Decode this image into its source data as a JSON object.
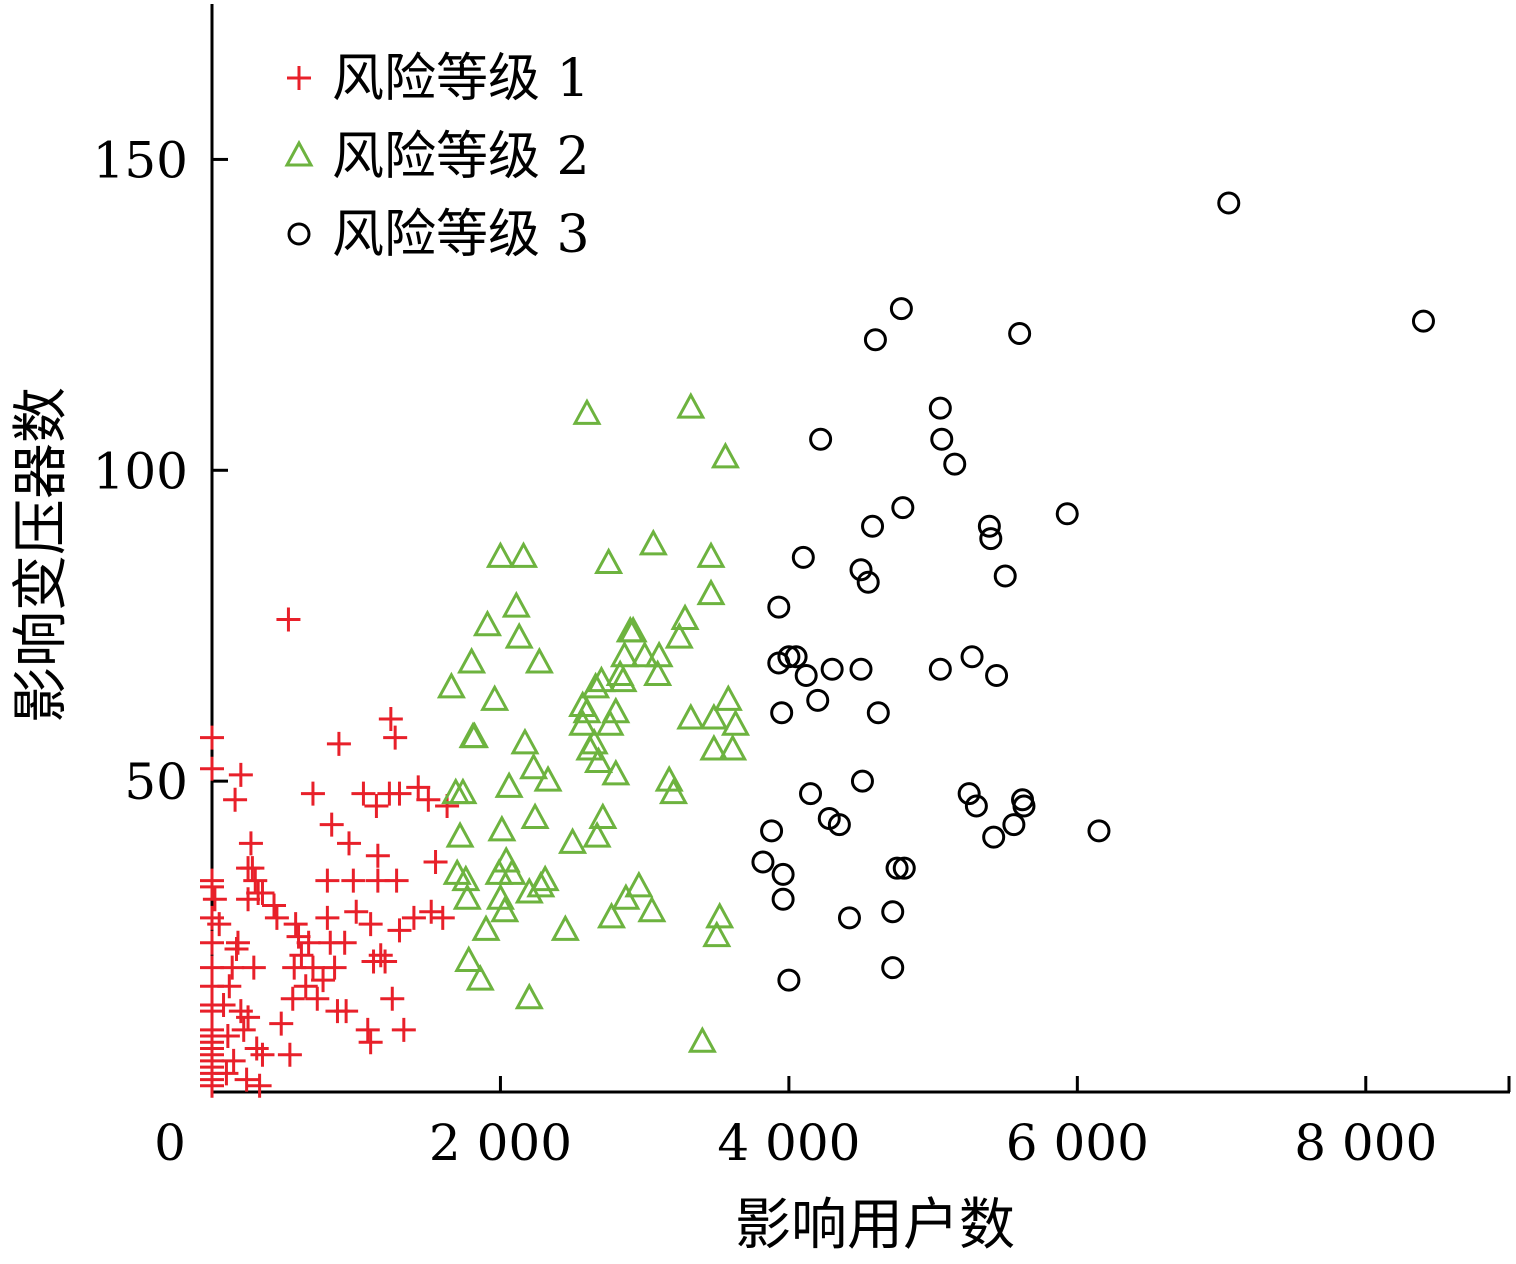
{
  "chart_data": {
    "type": "scatter",
    "title": "",
    "xlabel": "影响用户数",
    "ylabel": "影响变压器数",
    "xlim": [
      0,
      9000
    ],
    "ylim": [
      0,
      175
    ],
    "xticks": [
      0,
      2000,
      4000,
      6000,
      8000
    ],
    "xtick_labels": [
      "0",
      "2 000",
      "4 000",
      "6 000",
      "8 000"
    ],
    "yticks": [
      50,
      100,
      150
    ],
    "ytick_labels": [
      "50",
      "100",
      "150"
    ],
    "grid": false,
    "legend_position": "top-left",
    "series": [
      {
        "name": "风险等级 1",
        "marker": "plus",
        "color": "#e8202a",
        "points": [
          [
            0,
            1
          ],
          [
            0,
            2
          ],
          [
            0,
            3
          ],
          [
            0,
            4
          ],
          [
            0,
            5
          ],
          [
            0,
            6
          ],
          [
            0,
            7
          ],
          [
            0,
            8
          ],
          [
            0,
            9
          ],
          [
            0,
            10
          ],
          [
            0,
            13
          ],
          [
            0,
            14
          ],
          [
            0,
            17
          ],
          [
            0,
            20
          ],
          [
            0,
            24
          ],
          [
            0,
            28
          ],
          [
            0,
            33
          ],
          [
            0,
            34
          ],
          [
            0,
            52
          ],
          [
            0,
            57
          ],
          [
            20,
            31
          ],
          [
            50,
            27
          ],
          [
            80,
            14
          ],
          [
            100,
            3
          ],
          [
            110,
            9
          ],
          [
            120,
            17
          ],
          [
            140,
            20
          ],
          [
            150,
            5
          ],
          [
            160,
            47
          ],
          [
            170,
            23
          ],
          [
            180,
            24
          ],
          [
            200,
            51
          ],
          [
            200,
            13
          ],
          [
            220,
            10
          ],
          [
            240,
            2
          ],
          [
            250,
            31
          ],
          [
            250,
            36
          ],
          [
            250,
            12
          ],
          [
            270,
            40
          ],
          [
            280,
            36
          ],
          [
            290,
            20
          ],
          [
            300,
            34
          ],
          [
            310,
            7
          ],
          [
            320,
            32
          ],
          [
            330,
            1
          ],
          [
            350,
            32
          ],
          [
            350,
            6
          ],
          [
            430,
            30
          ],
          [
            450,
            28
          ],
          [
            480,
            11
          ],
          [
            530,
            76
          ],
          [
            540,
            6
          ],
          [
            560,
            15
          ],
          [
            570,
            20
          ],
          [
            580,
            27
          ],
          [
            600,
            25
          ],
          [
            620,
            22
          ],
          [
            650,
            17
          ],
          [
            670,
            24
          ],
          [
            700,
            48
          ],
          [
            700,
            20
          ],
          [
            730,
            15
          ],
          [
            770,
            18
          ],
          [
            800,
            34
          ],
          [
            800,
            28
          ],
          [
            820,
            24
          ],
          [
            830,
            43
          ],
          [
            850,
            20
          ],
          [
            870,
            13
          ],
          [
            880,
            56
          ],
          [
            920,
            24
          ],
          [
            930,
            13
          ],
          [
            950,
            40
          ],
          [
            980,
            34
          ],
          [
            1000,
            29
          ],
          [
            1050,
            48
          ],
          [
            1080,
            10
          ],
          [
            1100,
            8
          ],
          [
            1100,
            27
          ],
          [
            1120,
            21
          ],
          [
            1140,
            46
          ],
          [
            1150,
            38
          ],
          [
            1150,
            34
          ],
          [
            1170,
            22
          ],
          [
            1200,
            21
          ],
          [
            1230,
            48
          ],
          [
            1240,
            60
          ],
          [
            1250,
            15
          ],
          [
            1270,
            57
          ],
          [
            1280,
            34
          ],
          [
            1300,
            26
          ],
          [
            1300,
            48
          ],
          [
            1330,
            10
          ],
          [
            1400,
            28
          ],
          [
            1430,
            49
          ],
          [
            1500,
            47
          ],
          [
            1520,
            29
          ],
          [
            1550,
            37
          ],
          [
            1600,
            28
          ],
          [
            1630,
            46
          ]
        ]
      },
      {
        "name": "风险等级 2",
        "marker": "triangle",
        "color": "#6db33f",
        "points": [
          [
            1660,
            65
          ],
          [
            1690,
            48
          ],
          [
            1700,
            35
          ],
          [
            1720,
            41
          ],
          [
            1740,
            48
          ],
          [
            1760,
            34
          ],
          [
            1770,
            31
          ],
          [
            1780,
            21
          ],
          [
            1800,
            69
          ],
          [
            1810,
            57
          ],
          [
            1820,
            57
          ],
          [
            1860,
            18
          ],
          [
            1900,
            26
          ],
          [
            1910,
            75
          ],
          [
            1960,
            63
          ],
          [
            1990,
            35
          ],
          [
            2000,
            31
          ],
          [
            2000,
            86
          ],
          [
            2010,
            42
          ],
          [
            2030,
            29
          ],
          [
            2040,
            37
          ],
          [
            2060,
            49
          ],
          [
            2080,
            35
          ],
          [
            2110,
            78
          ],
          [
            2130,
            73
          ],
          [
            2160,
            86
          ],
          [
            2170,
            56
          ],
          [
            2200,
            32
          ],
          [
            2200,
            15
          ],
          [
            2230,
            52
          ],
          [
            2240,
            44
          ],
          [
            2270,
            69
          ],
          [
            2280,
            33
          ],
          [
            2310,
            34
          ],
          [
            2330,
            50
          ],
          [
            2450,
            26
          ],
          [
            2500,
            40
          ],
          [
            2570,
            62
          ],
          [
            2570,
            59
          ],
          [
            2600,
            61
          ],
          [
            2600,
            109
          ],
          [
            2620,
            55
          ],
          [
            2650,
            56
          ],
          [
            2660,
            65
          ],
          [
            2670,
            41
          ],
          [
            2680,
            53
          ],
          [
            2700,
            66
          ],
          [
            2710,
            44
          ],
          [
            2750,
            85
          ],
          [
            2760,
            59
          ],
          [
            2770,
            28
          ],
          [
            2800,
            51
          ],
          [
            2800,
            61
          ],
          [
            2830,
            67
          ],
          [
            2850,
            66
          ],
          [
            2860,
            70
          ],
          [
            2870,
            31
          ],
          [
            2900,
            74
          ],
          [
            2920,
            74
          ],
          [
            2960,
            33
          ],
          [
            3000,
            70
          ],
          [
            3050,
            29
          ],
          [
            3060,
            88
          ],
          [
            3090,
            67
          ],
          [
            3100,
            70
          ],
          [
            3170,
            50
          ],
          [
            3200,
            48
          ],
          [
            3240,
            73
          ],
          [
            3280,
            76
          ],
          [
            3320,
            110
          ],
          [
            3320,
            60
          ],
          [
            3400,
            8
          ],
          [
            3460,
            86
          ],
          [
            3460,
            80
          ],
          [
            3480,
            60
          ],
          [
            3480,
            55
          ],
          [
            3500,
            25
          ],
          [
            3520,
            28
          ],
          [
            3560,
            102
          ],
          [
            3580,
            63
          ],
          [
            3610,
            55
          ],
          [
            3630,
            59
          ]
        ]
      },
      {
        "name": "风险等级 3",
        "marker": "circle",
        "color": "#000000",
        "points": [
          [
            3820,
            37
          ],
          [
            3880,
            42
          ],
          [
            3930,
            69
          ],
          [
            3930,
            78
          ],
          [
            3950,
            61
          ],
          [
            3960,
            35
          ],
          [
            3960,
            31
          ],
          [
            4000,
            70
          ],
          [
            4000,
            18
          ],
          [
            4050,
            70
          ],
          [
            4100,
            86
          ],
          [
            4120,
            67
          ],
          [
            4150,
            48
          ],
          [
            4200,
            63
          ],
          [
            4220,
            105
          ],
          [
            4280,
            44
          ],
          [
            4300,
            68
          ],
          [
            4350,
            43
          ],
          [
            4420,
            28
          ],
          [
            4500,
            84
          ],
          [
            4500,
            68
          ],
          [
            4510,
            50
          ],
          [
            4550,
            82
          ],
          [
            4580,
            91
          ],
          [
            4600,
            121
          ],
          [
            4620,
            61
          ],
          [
            4720,
            29
          ],
          [
            4720,
            20
          ],
          [
            4750,
            36
          ],
          [
            4780,
            126
          ],
          [
            4790,
            94
          ],
          [
            4800,
            36
          ],
          [
            5050,
            68
          ],
          [
            5050,
            110
          ],
          [
            5060,
            105
          ],
          [
            5150,
            101
          ],
          [
            5250,
            48
          ],
          [
            5270,
            70
          ],
          [
            5300,
            46
          ],
          [
            5390,
            91
          ],
          [
            5400,
            89
          ],
          [
            5420,
            41
          ],
          [
            5440,
            67
          ],
          [
            5500,
            83
          ],
          [
            5560,
            43
          ],
          [
            5600,
            122
          ],
          [
            5620,
            47
          ],
          [
            5630,
            46
          ],
          [
            5930,
            93
          ],
          [
            6150,
            42
          ],
          [
            7050,
            143
          ],
          [
            8400,
            124
          ]
        ]
      }
    ]
  }
}
